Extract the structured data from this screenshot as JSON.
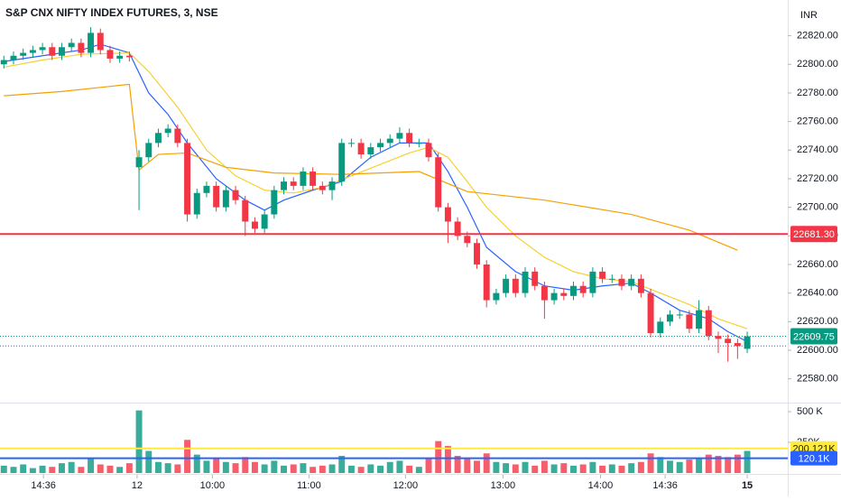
{
  "chart_data": [
    {
      "type": "candlestick",
      "title": "S&P CNX NIFTY INDEX FUTURES, 3, NSE",
      "currency": "INR",
      "up_color": "#089981",
      "down_color": "#f23645",
      "open": [
        22800,
        22803,
        22806,
        22808,
        22810,
        22812,
        22806,
        22812,
        22815,
        22808,
        22822,
        22810,
        22804,
        22806,
        22728,
        22735,
        22745,
        22752,
        22755,
        22745,
        22695,
        22710,
        22715,
        22700,
        22712,
        22705,
        22690,
        22685,
        22695,
        22712,
        22718,
        22715,
        22725,
        22715,
        22712,
        22718,
        22745,
        22745,
        22737,
        22742,
        22745,
        22748,
        22752,
        22745,
        22745,
        22735,
        22700,
        22690,
        22680,
        22675,
        22660,
        22635,
        22640,
        22650,
        22640,
        22655,
        22645,
        22635,
        22640,
        22638,
        22645,
        22640,
        22655,
        22650,
        22650,
        22645,
        22650,
        22640,
        22612,
        22620,
        22625,
        22625,
        22615,
        22628,
        22610,
        22608,
        22605,
        22601
      ],
      "high": [
        22806,
        22809,
        22811,
        22813,
        22815,
        22815,
        22815,
        22818,
        22818,
        22826,
        22825,
        22813,
        22809,
        22809,
        22740,
        22748,
        22755,
        22758,
        22758,
        22748,
        22713,
        22718,
        22718,
        22715,
        22715,
        22708,
        22693,
        22698,
        22715,
        22721,
        22721,
        22728,
        22728,
        22718,
        22721,
        22748,
        22748,
        22748,
        22745,
        22748,
        22751,
        22756,
        22755,
        22748,
        22748,
        22738,
        22703,
        22693,
        22683,
        22678,
        22663,
        22643,
        22653,
        22653,
        22658,
        22658,
        22648,
        22643,
        22643,
        22648,
        22648,
        22658,
        22658,
        22653,
        22653,
        22653,
        22653,
        22643,
        22623,
        22628,
        22628,
        22628,
        22635,
        22631,
        22613,
        22611,
        22608,
        22613
      ],
      "low": [
        22797,
        22800,
        22803,
        22805,
        22807,
        22803,
        22803,
        22809,
        22805,
        22805,
        22807,
        22801,
        22801,
        22802,
        22698,
        22732,
        22742,
        22749,
        22742,
        22690,
        22692,
        22707,
        22697,
        22697,
        22702,
        22680,
        22682,
        22682,
        22692,
        22709,
        22712,
        22712,
        22712,
        22709,
        22705,
        22715,
        22742,
        22734,
        22734,
        22739,
        22742,
        22745,
        22742,
        22742,
        22732,
        22697,
        22675,
        22677,
        22672,
        22657,
        22630,
        22632,
        22637,
        22637,
        22637,
        22642,
        22622,
        22632,
        22635,
        22635,
        22637,
        22637,
        22647,
        22647,
        22642,
        22642,
        22637,
        22609,
        22609,
        22617,
        22622,
        22612,
        22612,
        22607,
        22598,
        22592,
        22594,
        22598
      ],
      "close": [
        22803,
        22806,
        22808,
        22810,
        22812,
        22806,
        22812,
        22815,
        22808,
        22822,
        22810,
        22804,
        22806,
        22805,
        22735,
        22745,
        22752,
        22755,
        22745,
        22695,
        22710,
        22715,
        22700,
        22712,
        22705,
        22690,
        22685,
        22695,
        22712,
        22718,
        22715,
        22725,
        22715,
        22712,
        22718,
        22745,
        22745,
        22737,
        22742,
        22745,
        22748,
        22752,
        22745,
        22745,
        22735,
        22700,
        22690,
        22680,
        22675,
        22660,
        22635,
        22640,
        22650,
        22640,
        22655,
        22645,
        22635,
        22640,
        22638,
        22645,
        22640,
        22655,
        22650,
        22650,
        22645,
        22650,
        22640,
        22612,
        22620,
        22625,
        22625,
        22615,
        22628,
        22610,
        22608,
        22605,
        22603,
        22609.75
      ],
      "series": [
        {
          "color": "#2962ff",
          "x": [
            0,
            4,
            8,
            10,
            13,
            15,
            17,
            19,
            22,
            25,
            27,
            29,
            32,
            35,
            38,
            41,
            44,
            46,
            48,
            50,
            53,
            56,
            59,
            62,
            65,
            67,
            70,
            73,
            75,
            77
          ],
          "values": [
            22802,
            22806,
            22810,
            22814,
            22808,
            22780,
            22765,
            22745,
            22720,
            22705,
            22698,
            22705,
            22712,
            22718,
            22735,
            22745,
            22745,
            22725,
            22700,
            22672,
            22655,
            22645,
            22642,
            22645,
            22647,
            22640,
            22628,
            22622,
            22613,
            22606
          ]
        },
        {
          "color": "#f5d130",
          "x": [
            0,
            4,
            8,
            13,
            15,
            18,
            21,
            24,
            27,
            30,
            33,
            36,
            39,
            42,
            44,
            46,
            48,
            50,
            53,
            56,
            59,
            62,
            65,
            68,
            71,
            74,
            77
          ],
          "values": [
            22798,
            22803,
            22807,
            22808,
            22795,
            22770,
            22740,
            22722,
            22712,
            22710,
            22714,
            22722,
            22730,
            22738,
            22742,
            22735,
            22718,
            22700,
            22680,
            22665,
            22655,
            22650,
            22648,
            22640,
            22632,
            22622,
            22615
          ]
        },
        {
          "color": "#f5a000",
          "x": [
            0,
            6,
            13,
            14,
            16,
            19,
            23,
            28,
            35,
            43,
            48,
            56,
            65,
            71,
            76
          ],
          "values": [
            22778,
            22781,
            22786,
            22726,
            22737,
            22738,
            22728,
            22724,
            22723,
            22725,
            22711,
            22705,
            22695,
            22684,
            22670
          ]
        }
      ],
      "levels": [
        {
          "value": 22681.3,
          "label": "22681.30",
          "color": "#f23645",
          "style": "solid"
        },
        {
          "value": 22609.75,
          "label": "22609.75",
          "color": "#089981",
          "style": "dotted"
        },
        {
          "value": 22603,
          "color": "#2962ff",
          "style": "dotted"
        }
      ],
      "xlim": [
        -0.4,
        81.2
      ],
      "xticks": [
        {
          "value": 4.1,
          "label": "14:36"
        },
        {
          "value": 13.8,
          "label": "12"
        },
        {
          "value": 21.6,
          "label": "10:00"
        },
        {
          "value": 31.6,
          "label": "11:00"
        },
        {
          "value": 41.6,
          "label": "12:00"
        },
        {
          "value": 51.7,
          "label": "13:00"
        },
        {
          "value": 61.8,
          "label": "14:00"
        },
        {
          "value": 68.5,
          "label": "14:36"
        },
        {
          "value": 77,
          "label": "15"
        }
      ],
      "ylim": [
        22564,
        22845
      ],
      "yticks": [
        {
          "value": 22820,
          "label": "22820.00"
        },
        {
          "value": 22800,
          "label": "22800.00"
        },
        {
          "value": 22780,
          "label": "22780.00"
        },
        {
          "value": 22760,
          "label": "22760.00"
        },
        {
          "value": 22740,
          "label": "22740.00"
        },
        {
          "value": 22720,
          "label": "22720.00"
        },
        {
          "value": 22700,
          "label": "22700.00"
        },
        {
          "value": 22680,
          "label": "22680.00"
        },
        {
          "value": 22660,
          "label": "22660.00"
        },
        {
          "value": 22640,
          "label": "22640.00"
        },
        {
          "value": 22620,
          "label": "22620.00"
        },
        {
          "value": 22600,
          "label": "22600.00"
        },
        {
          "value": 22580,
          "label": "22580.00"
        }
      ]
    },
    {
      "type": "volume",
      "values": [
        60000,
        50000,
        70000,
        40000,
        60000,
        50000,
        80000,
        90000,
        50000,
        120000,
        70000,
        60000,
        50000,
        80000,
        510000,
        180000,
        90000,
        80000,
        70000,
        270000,
        150000,
        100000,
        120000,
        90000,
        80000,
        130000,
        90000,
        70000,
        100000,
        60000,
        70000,
        80000,
        50000,
        60000,
        70000,
        140000,
        60000,
        50000,
        70000,
        60000,
        90000,
        100000,
        60000,
        50000,
        120000,
        260000,
        220000,
        140000,
        120000,
        100000,
        160000,
        90000,
        80000,
        70000,
        90000,
        60000,
        100000,
        70000,
        80000,
        60000,
        70000,
        90000,
        60000,
        70000,
        60000,
        80000,
        90000,
        160000,
        130000,
        100000,
        90000,
        110000,
        120000,
        150000,
        140000,
        130000,
        150000,
        180000
      ],
      "ylim": [
        0,
        559000
      ],
      "yticks": [
        {
          "value": 500000,
          "label": "500 K"
        },
        {
          "value": 250000,
          "label": "250K"
        }
      ],
      "levels": [
        {
          "value": 200121,
          "label": "200.121K",
          "color": "#ffeb3b",
          "text_color": "#131722"
        },
        {
          "value": 120100,
          "label": "120.1K",
          "color": "#2962ff",
          "text_color": "#ffffff"
        }
      ]
    }
  ]
}
